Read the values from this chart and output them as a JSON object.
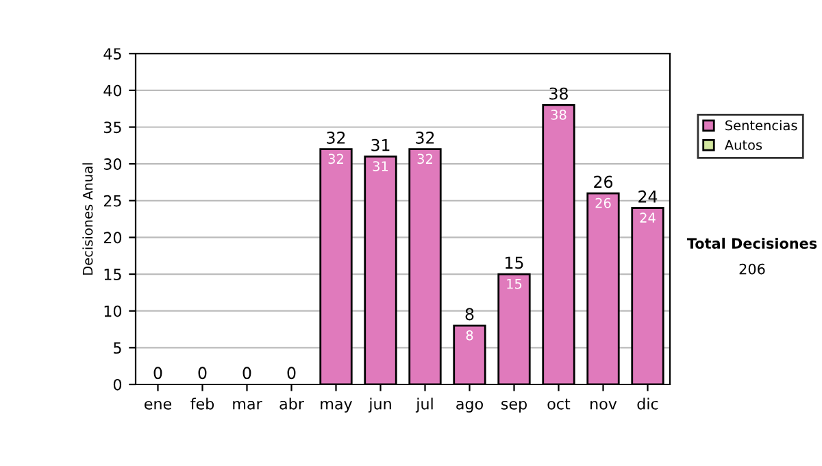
{
  "chart_data": {
    "type": "bar",
    "ylabel": "Decisiones Anual",
    "categories": [
      "ene",
      "feb",
      "mar",
      "abr",
      "may",
      "jun",
      "jul",
      "ago",
      "sep",
      "oct",
      "nov",
      "dic"
    ],
    "stacked": true,
    "series": [
      {
        "name": "Sentencias",
        "color": "#e07abc",
        "values": [
          0,
          0,
          0,
          0,
          32,
          31,
          32,
          8,
          15,
          38,
          26,
          24
        ],
        "value_labels": [
          null,
          null,
          null,
          null,
          "32",
          "31",
          "32",
          "8",
          "15",
          "38",
          "26",
          "24"
        ]
      },
      {
        "name": "Autos",
        "color": "#d4e8a0",
        "values": [
          0,
          0,
          0,
          0,
          0,
          0,
          0,
          0,
          0,
          0,
          0,
          0
        ]
      }
    ],
    "totals": [
      "0",
      "0",
      "0",
      "0",
      "32",
      "31",
      "32",
      "8",
      "15",
      "38",
      "26",
      "24"
    ],
    "ylim": [
      0,
      45
    ],
    "yticks": [
      0,
      5,
      10,
      15,
      20,
      25,
      30,
      35,
      40,
      45
    ],
    "grid": "y",
    "legend": "right",
    "annotations": [
      "Total Decisiones",
      "206"
    ]
  }
}
